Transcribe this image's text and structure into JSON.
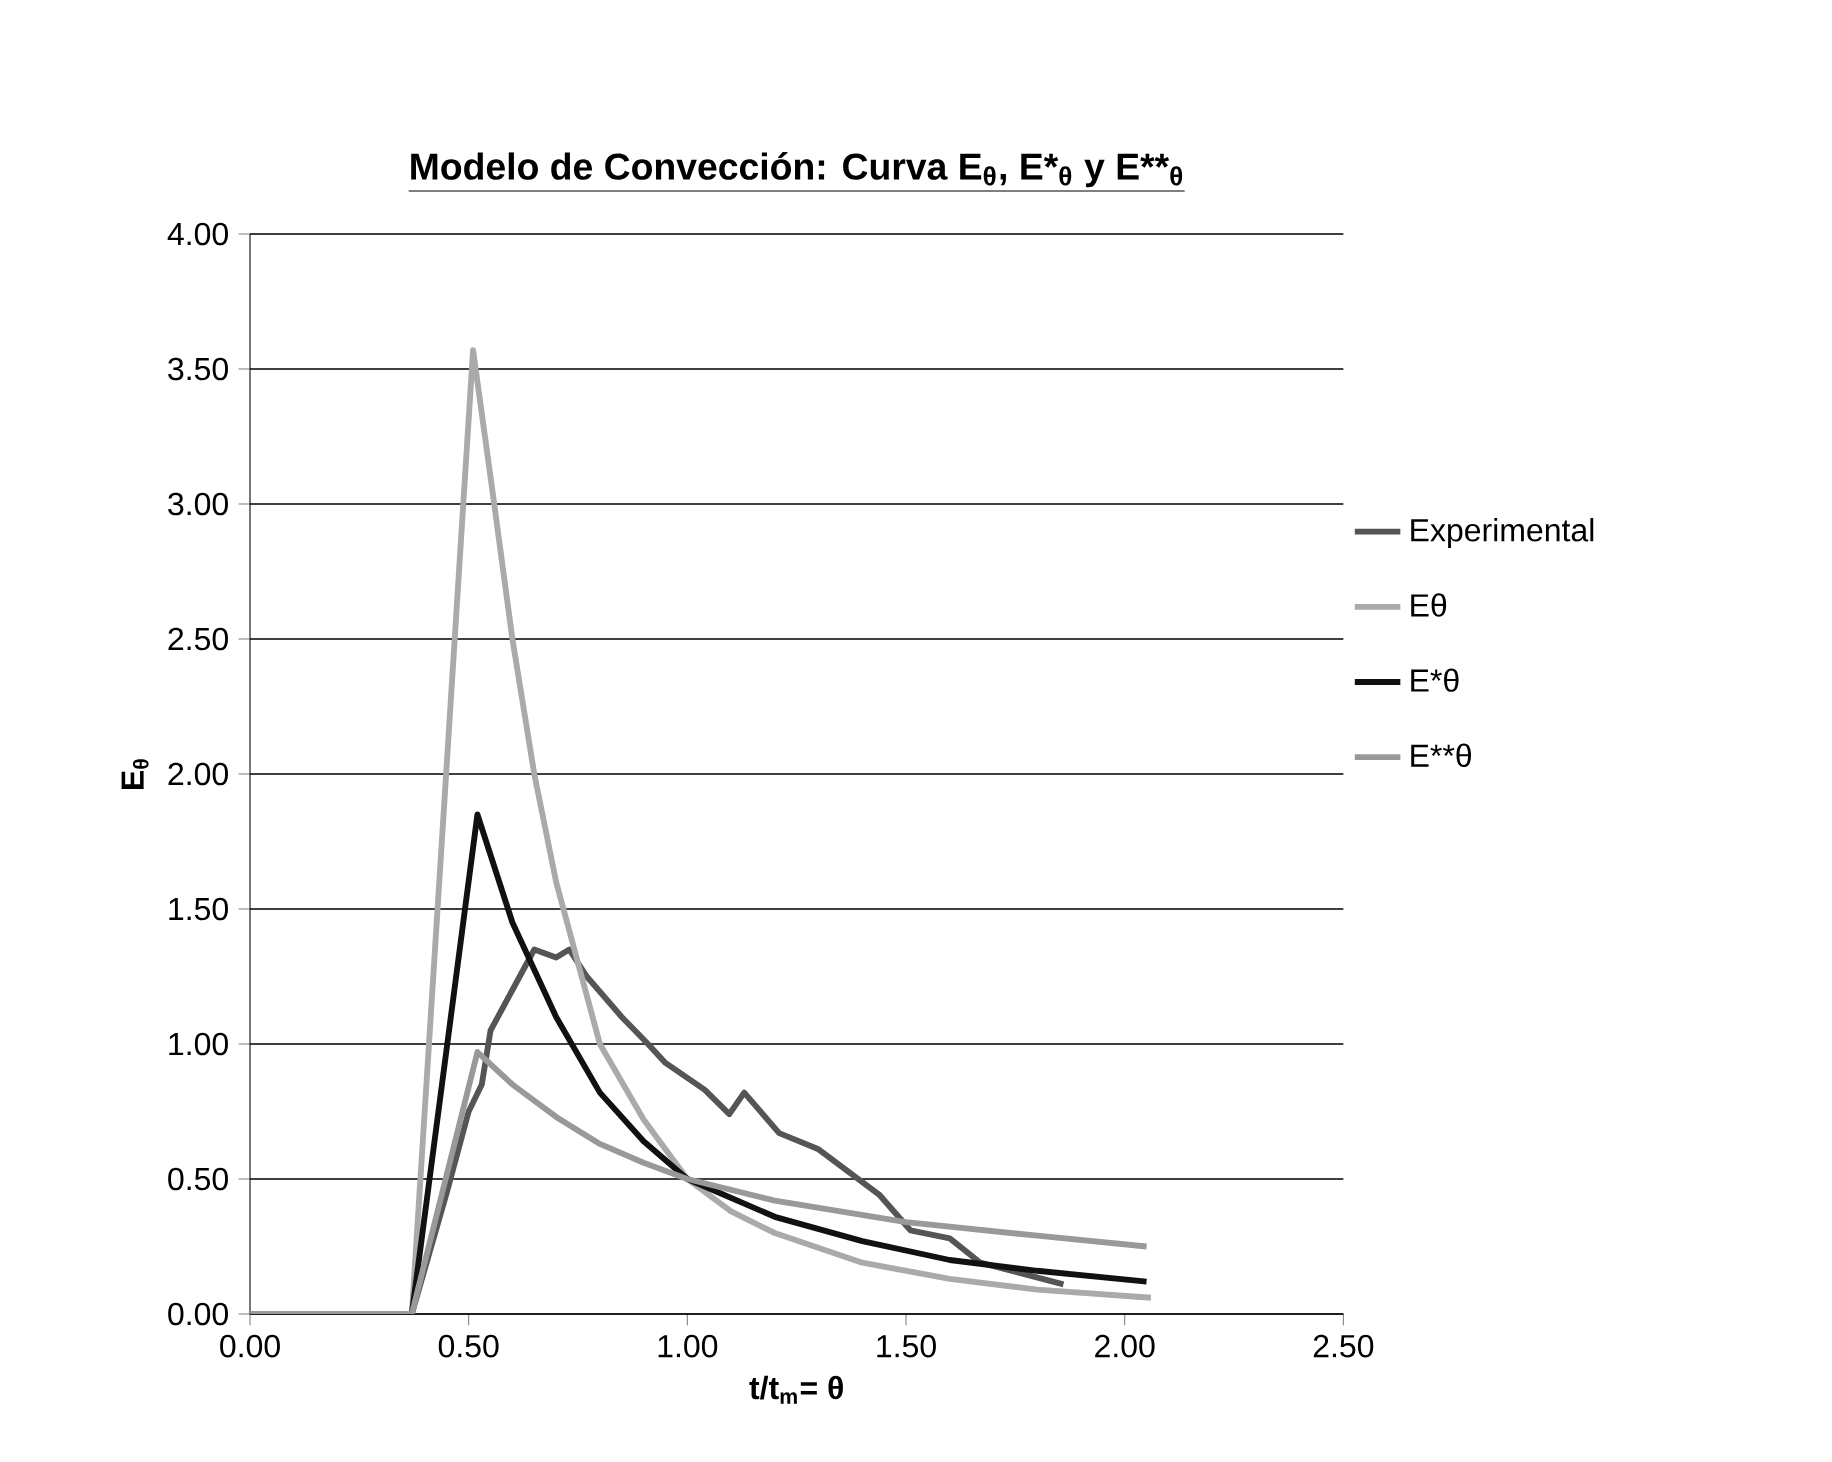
{
  "chart_data": {
    "type": "line",
    "title": "Modelo de Convección: Curva E$_{θ}$, E*$_{θ}$ y E**$_{θ}$",
    "xlabel": "t/t$_{m}$= θ",
    "ylabel": "E$_{θ}$",
    "xlim": [
      0,
      2.5
    ],
    "ylim": [
      0,
      4
    ],
    "xticks": [
      {
        "value": 0,
        "label": "0.00"
      },
      {
        "value": 0.5,
        "label": "0.50"
      },
      {
        "value": 1,
        "label": "1.00"
      },
      {
        "value": 1.5,
        "label": "1.50"
      },
      {
        "value": 2,
        "label": "2.00"
      },
      {
        "value": 2.5,
        "label": "2.50"
      }
    ],
    "yticks": [
      {
        "value": 0,
        "label": "0.00"
      },
      {
        "value": 0.5,
        "label": "0.50"
      },
      {
        "value": 1,
        "label": "1.00"
      },
      {
        "value": 1.5,
        "label": "1.50"
      },
      {
        "value": 2,
        "label": "2.00"
      },
      {
        "value": 2.5,
        "label": "2.50"
      },
      {
        "value": 3,
        "label": "3.00"
      },
      {
        "value": 3.5,
        "label": "3.50"
      },
      {
        "value": 4,
        "label": "4.00"
      }
    ],
    "grid": "y",
    "legend": "right",
    "marker": "none",
    "line_style": "solid",
    "series": [
      {
        "name": "Experimental",
        "color": "#555555",
        "x": [
          0,
          0.37,
          0.45,
          0.5,
          0.53,
          0.55,
          0.6,
          0.65,
          0.7,
          0.73,
          0.77,
          0.85,
          0.91,
          0.95,
          1.04,
          1.096,
          1.13,
          1.21,
          1.3,
          1.44,
          1.51,
          1.6,
          1.67,
          1.86
        ],
        "values": [
          0,
          0,
          0.45,
          0.75,
          0.85,
          1.05,
          1.2,
          1.35,
          1.32,
          1.35,
          1.25,
          1.1,
          1.0,
          0.93,
          0.83,
          0.74,
          0.82,
          0.67,
          0.61,
          0.44,
          0.31,
          0.28,
          0.19,
          0.11
        ]
      },
      {
        "name": "Eθ",
        "color": "#aaaaaa",
        "x": [
          0,
          0.37,
          0.51,
          0.55,
          0.6,
          0.65,
          0.7,
          0.8,
          0.9,
          1.0,
          1.1,
          1.2,
          1.4,
          1.6,
          1.8,
          2.06
        ],
        "values": [
          0,
          0,
          3.57,
          3.1,
          2.5,
          2.0,
          1.6,
          1.0,
          0.72,
          0.5,
          0.38,
          0.3,
          0.19,
          0.13,
          0.09,
          0.06
        ]
      },
      {
        "name": "E*θ",
        "color": "#111111",
        "x": [
          0,
          0.37,
          0.52,
          0.6,
          0.7,
          0.8,
          0.9,
          1.0,
          1.2,
          1.4,
          1.6,
          1.8,
          2.05
        ],
        "values": [
          0,
          0,
          1.85,
          1.45,
          1.1,
          0.82,
          0.64,
          0.5,
          0.36,
          0.27,
          0.2,
          0.16,
          0.12
        ]
      },
      {
        "name": "E**θ",
        "color": "#999999",
        "x": [
          0,
          0.37,
          0.52,
          0.6,
          0.7,
          0.8,
          0.9,
          1.0,
          1.2,
          1.5,
          1.8,
          2.05
        ],
        "values": [
          0,
          0,
          0.97,
          0.85,
          0.73,
          0.63,
          0.56,
          0.5,
          0.42,
          0.34,
          0.29,
          0.25
        ]
      }
    ]
  }
}
